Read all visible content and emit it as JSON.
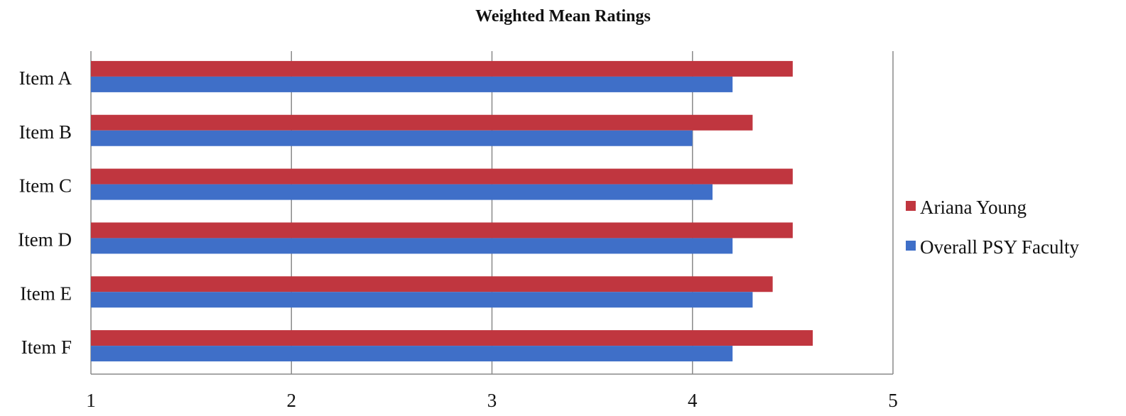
{
  "chart_data": {
    "type": "bar",
    "orientation": "horizontal",
    "title": "Weighted Mean Ratings",
    "xlabel": "",
    "ylabel": "",
    "categories": [
      "Item A",
      "Item B",
      "Item C",
      "Item D",
      "Item E",
      "Item F"
    ],
    "series": [
      {
        "name": "Ariana Young",
        "color": "#C0363F",
        "values": [
          4.5,
          4.3,
          4.5,
          4.5,
          4.4,
          4.6
        ]
      },
      {
        "name": "Overall PSY Faculty",
        "color": "#3F6FC8",
        "values": [
          4.2,
          4.0,
          4.1,
          4.2,
          4.3,
          4.2
        ]
      }
    ],
    "xlim": [
      1,
      5
    ],
    "xticks": [
      "1",
      "2",
      "3",
      "4",
      "5"
    ],
    "grid": "vertical",
    "legend_position": "right"
  }
}
